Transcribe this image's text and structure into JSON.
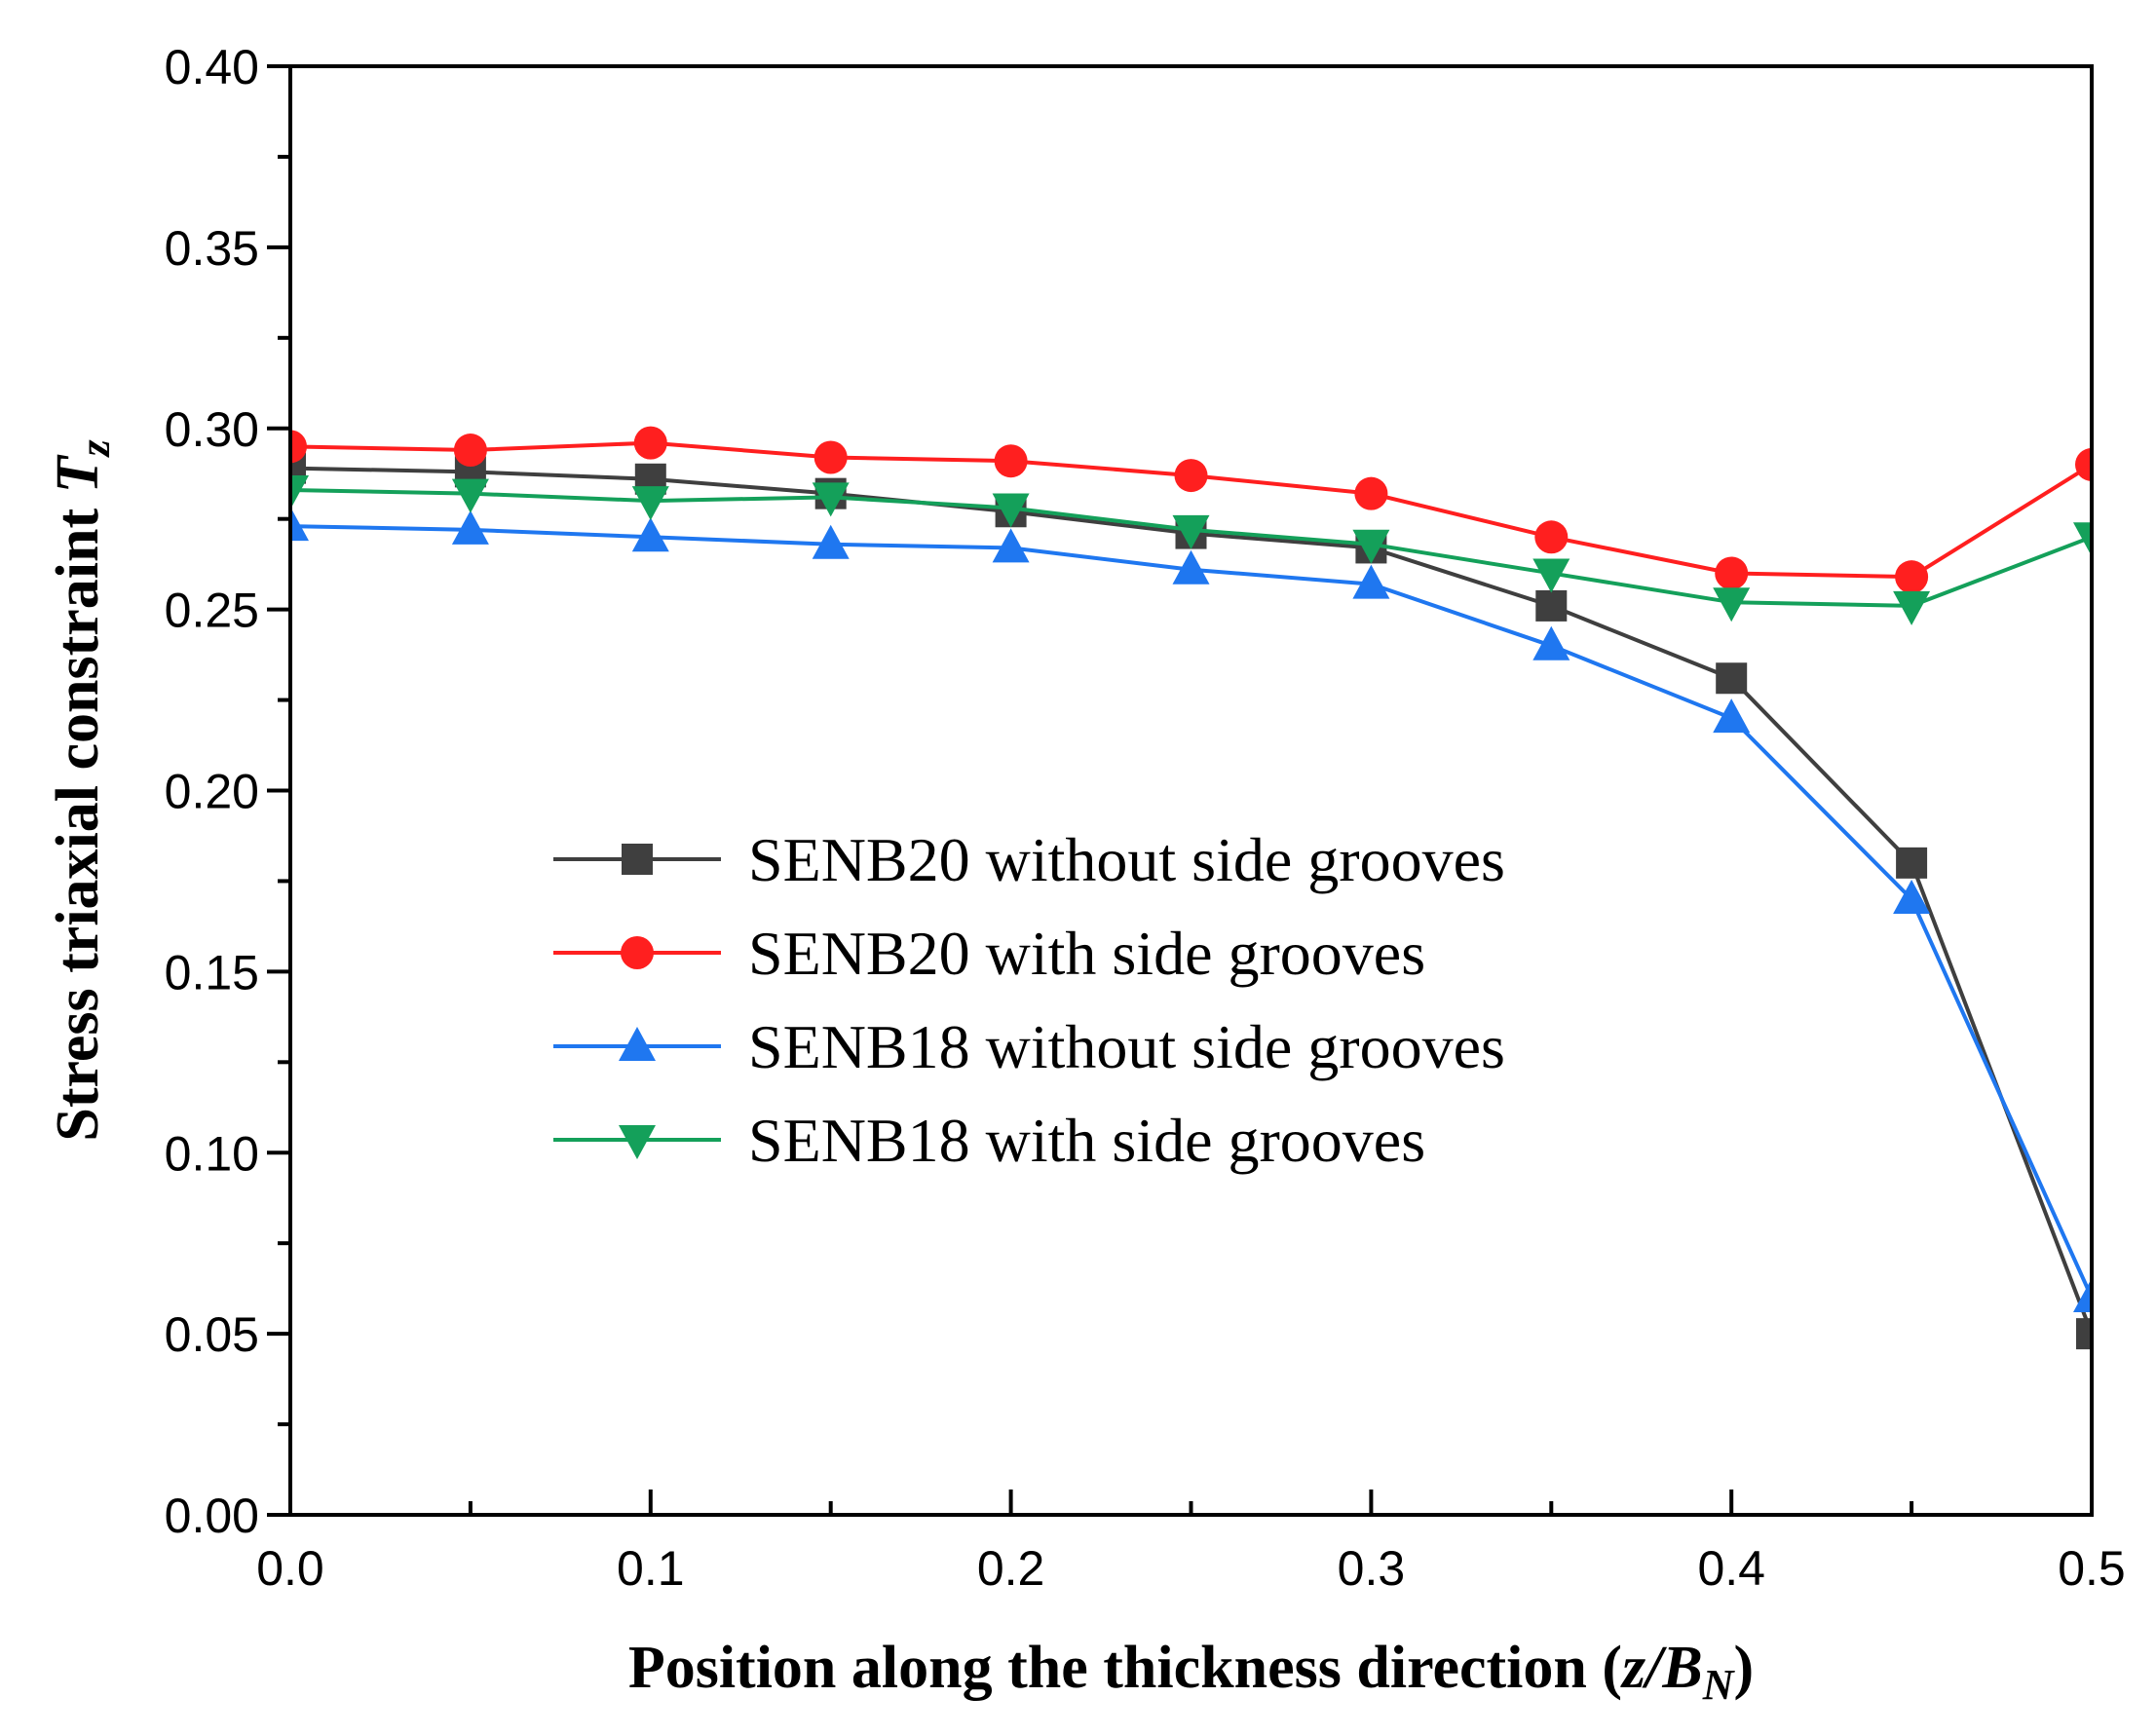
{
  "chart_data": {
    "type": "line",
    "title": "",
    "xlabel": {
      "prefix": "Position along the thickness direction (",
      "var_main": "z/B",
      "var_sub": "N",
      "suffix": ")"
    },
    "ylabel": {
      "prefix": "Stress triaxial constraint ",
      "var_main": "T",
      "var_sub": "z"
    },
    "xlim": [
      0,
      0.5
    ],
    "ylim": [
      0,
      0.4
    ],
    "x_ticks": [
      0,
      0.1,
      0.2,
      0.3,
      0.4,
      0.5
    ],
    "x_tick_labels": [
      "0.0",
      "0.1",
      "0.2",
      "0.3",
      "0.4",
      "0.5"
    ],
    "y_ticks": [
      0,
      0.05,
      0.1,
      0.15,
      0.2,
      0.25,
      0.3,
      0.35,
      0.4
    ],
    "y_tick_labels": [
      "0.00",
      "0.05",
      "0.10",
      "0.15",
      "0.20",
      "0.25",
      "0.30",
      "0.35",
      "0.40"
    ],
    "x": [
      0,
      0.05,
      0.1,
      0.15,
      0.2,
      0.25,
      0.3,
      0.35,
      0.4,
      0.45,
      0.5
    ],
    "legend_position": "center",
    "series": [
      {
        "name": "SENB20 without side grooves",
        "color": "#3f3f3f",
        "marker": "square",
        "values": [
          0.289,
          0.288,
          0.286,
          0.282,
          0.277,
          0.271,
          0.267,
          0.251,
          0.231,
          0.18,
          0.05
        ]
      },
      {
        "name": "SENB20 with side grooves",
        "color": "#ff1f1f",
        "marker": "circle",
        "values": [
          0.295,
          0.294,
          0.296,
          0.292,
          0.291,
          0.287,
          0.282,
          0.27,
          0.26,
          0.259,
          0.29
        ]
      },
      {
        "name": "SENB18 without side grooves",
        "color": "#1f77f0",
        "marker": "triangle-up",
        "values": [
          0.273,
          0.272,
          0.27,
          0.268,
          0.267,
          0.261,
          0.257,
          0.24,
          0.22,
          0.17,
          0.06
        ]
      },
      {
        "name": "SENB18 with side grooves",
        "color": "#14a05a",
        "marker": "triangle-down",
        "values": [
          0.283,
          0.282,
          0.28,
          0.281,
          0.278,
          0.272,
          0.268,
          0.26,
          0.252,
          0.251,
          0.27
        ]
      }
    ]
  }
}
